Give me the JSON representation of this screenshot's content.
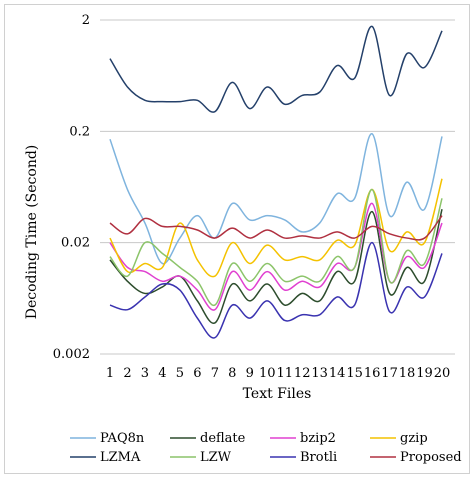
{
  "chart_data": {
    "type": "line",
    "title": "",
    "xlabel": "Text Files",
    "ylabel": "Decoding Time (Second)",
    "y_scale": "log",
    "ylim": [
      0.002,
      2
    ],
    "y_ticks": [
      {
        "value": 2,
        "label": "2"
      },
      {
        "value": 0.2,
        "label": "0.2"
      },
      {
        "value": 0.02,
        "label": "0.02"
      },
      {
        "value": 0.002,
        "label": "0.002"
      }
    ],
    "categories": [
      "1",
      "2",
      "3",
      "4",
      "5",
      "6",
      "7",
      "8",
      "9",
      "10",
      "11",
      "12",
      "13",
      "14",
      "15",
      "16",
      "17",
      "18",
      "19",
      "20"
    ],
    "grid": "horizontal",
    "legend_position": "bottom",
    "series": [
      {
        "name": "PAQ8n",
        "color": "#7fb4de",
        "values": [
          0.17,
          0.06,
          0.03,
          0.013,
          0.022,
          0.035,
          0.022,
          0.045,
          0.032,
          0.035,
          0.032,
          0.025,
          0.03,
          0.055,
          0.05,
          0.19,
          0.035,
          0.07,
          0.04,
          0.18
        ]
      },
      {
        "name": "deflate",
        "color": "#2d4d2d",
        "values": [
          0.014,
          0.009,
          0.007,
          0.008,
          0.01,
          0.006,
          0.0038,
          0.0085,
          0.006,
          0.0085,
          0.0055,
          0.007,
          0.006,
          0.011,
          0.009,
          0.038,
          0.007,
          0.012,
          0.009,
          0.04
        ]
      },
      {
        "name": "bzip2",
        "color": "#e040d0",
        "values": [
          0.02,
          0.012,
          0.011,
          0.009,
          0.01,
          0.0075,
          0.005,
          0.011,
          0.0075,
          0.011,
          0.0075,
          0.009,
          0.008,
          0.013,
          0.012,
          0.045,
          0.009,
          0.015,
          0.012,
          0.03
        ]
      },
      {
        "name": "gzip",
        "color": "#f4c200",
        "values": [
          0.022,
          0.011,
          0.013,
          0.012,
          0.03,
          0.014,
          0.01,
          0.02,
          0.013,
          0.019,
          0.014,
          0.015,
          0.014,
          0.021,
          0.019,
          0.06,
          0.017,
          0.025,
          0.02,
          0.075
        ]
      },
      {
        "name": "LZMA",
        "color": "#24406a",
        "values": [
          0.9,
          0.5,
          0.38,
          0.37,
          0.37,
          0.38,
          0.3,
          0.55,
          0.32,
          0.5,
          0.35,
          0.42,
          0.45,
          0.78,
          0.6,
          1.75,
          0.42,
          1.0,
          0.75,
          1.6
        ]
      },
      {
        "name": "LZW",
        "color": "#8cc46a",
        "values": [
          0.015,
          0.01,
          0.02,
          0.016,
          0.012,
          0.009,
          0.0055,
          0.013,
          0.009,
          0.013,
          0.009,
          0.01,
          0.009,
          0.015,
          0.012,
          0.06,
          0.009,
          0.017,
          0.013,
          0.05
        ]
      },
      {
        "name": "Brotli",
        "color": "#3a33b0",
        "values": [
          0.0055,
          0.005,
          0.0065,
          0.0085,
          0.0075,
          0.0042,
          0.0028,
          0.0055,
          0.0042,
          0.006,
          0.004,
          0.0045,
          0.0045,
          0.0065,
          0.0055,
          0.02,
          0.0048,
          0.008,
          0.0065,
          0.016
        ]
      },
      {
        "name": "Proposed",
        "color": "#b03040",
        "values": [
          0.03,
          0.024,
          0.033,
          0.028,
          0.028,
          0.026,
          0.022,
          0.027,
          0.022,
          0.026,
          0.022,
          0.023,
          0.022,
          0.025,
          0.022,
          0.028,
          0.024,
          0.022,
          0.022,
          0.035
        ]
      }
    ]
  }
}
